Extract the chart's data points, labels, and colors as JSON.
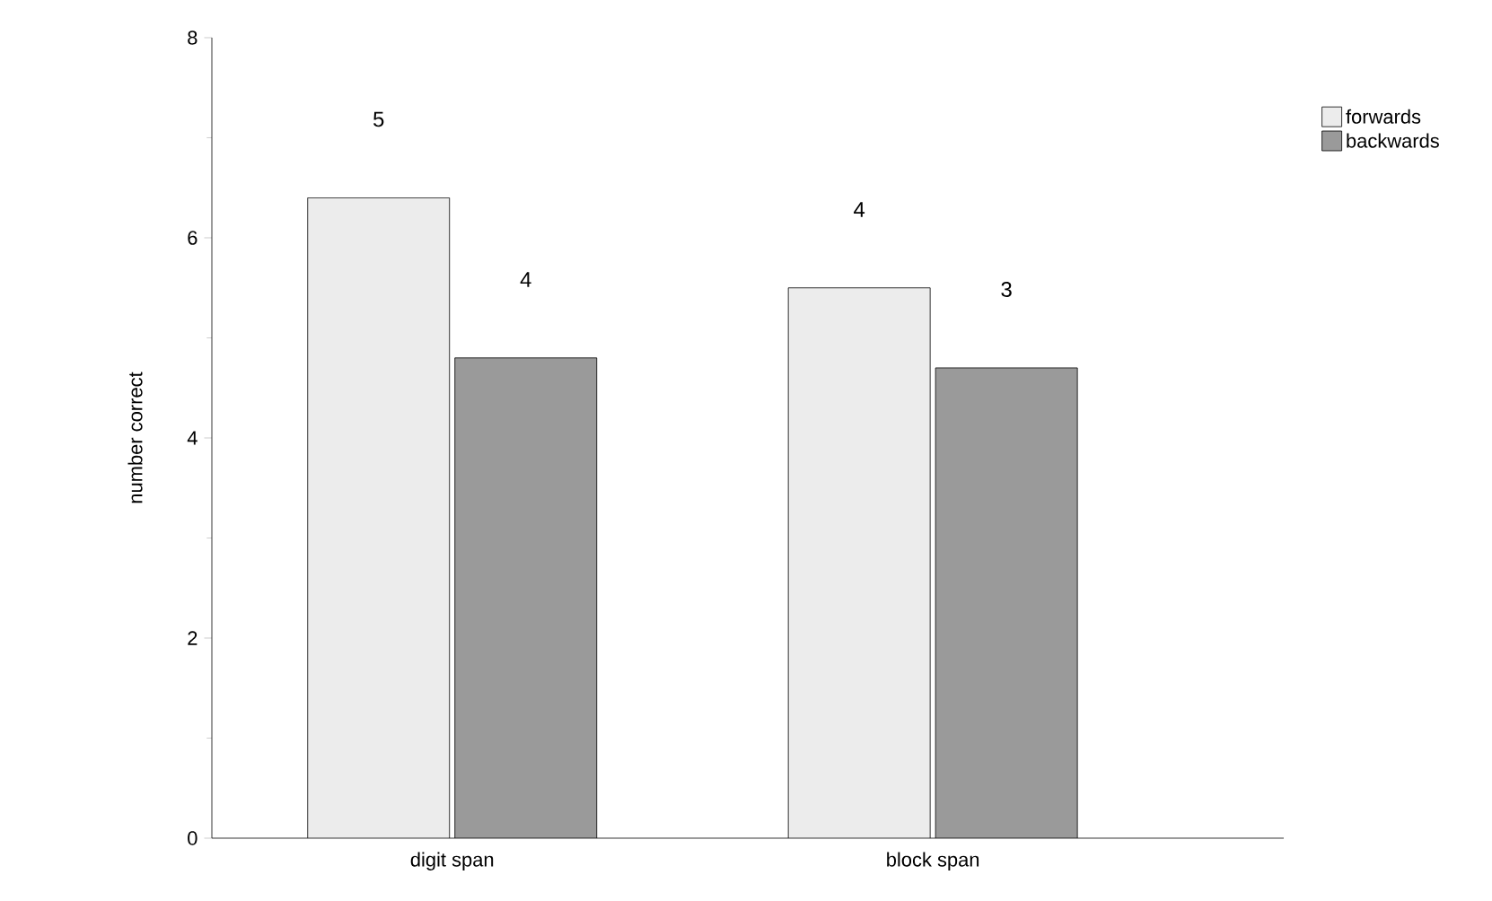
{
  "chart_data": {
    "type": "bar",
    "ylabel": "number correct",
    "categories": [
      "digit span",
      "block span"
    ],
    "series": [
      {
        "name": "forwards",
        "color": "#ececec",
        "values": [
          6.4,
          5.5
        ]
      },
      {
        "name": "backwards",
        "color": "#9a9a9a",
        "values": [
          4.8,
          4.7
        ]
      }
    ],
    "annotations": [
      "5",
      "4",
      "4",
      "3"
    ],
    "ylim": [
      0,
      8
    ],
    "yticks": [
      0,
      2,
      4,
      6,
      8
    ],
    "legend": "top right",
    "grid": false
  }
}
